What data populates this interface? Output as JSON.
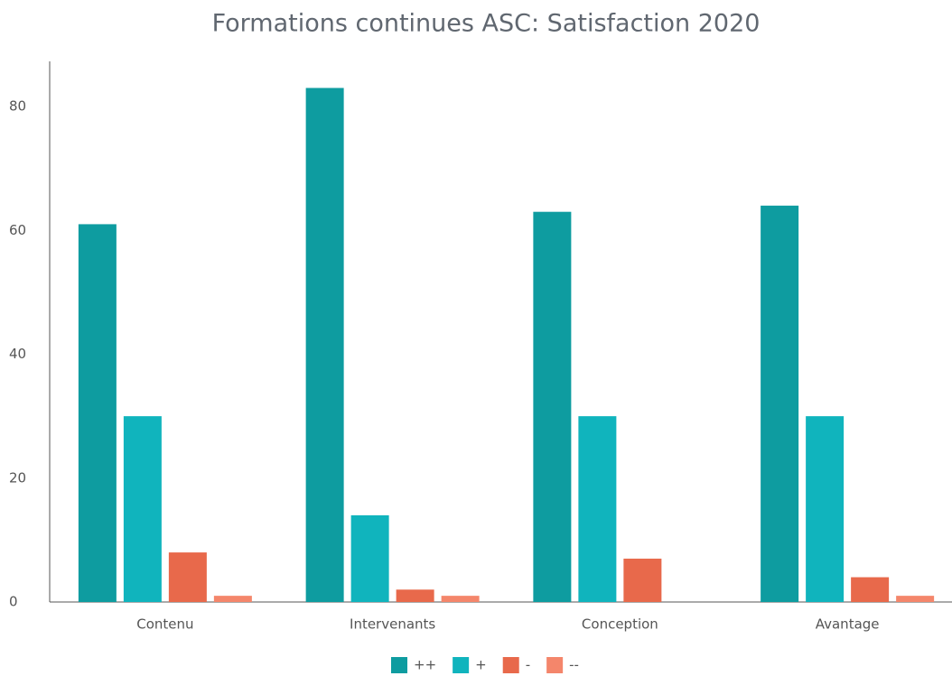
{
  "chart_data": {
    "type": "bar",
    "title": "Formations continues ASC: Satisfaction 2020",
    "categories": [
      "Contenu",
      "Intervenants",
      "Conception",
      "Avantage"
    ],
    "series": [
      {
        "name": "++",
        "color": "#0e9ca0",
        "values": [
          61,
          83,
          63,
          64
        ]
      },
      {
        "name": "+",
        "color": "#10b4bd",
        "values": [
          30,
          14,
          30,
          30
        ]
      },
      {
        "name": "-",
        "color": "#e8694b",
        "values": [
          8,
          2,
          7,
          4
        ]
      },
      {
        "name": "--",
        "color": "#f4866b",
        "values": [
          1,
          1,
          0,
          1
        ]
      }
    ],
    "ylim": [
      0,
      87
    ],
    "yticks": [
      0,
      20,
      40,
      60,
      80
    ],
    "grid": false,
    "legend": "bottom"
  }
}
